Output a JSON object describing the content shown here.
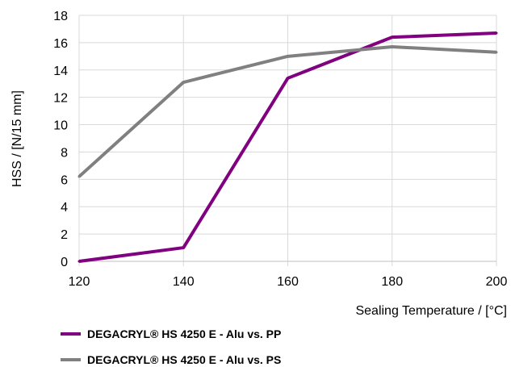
{
  "chart_data": {
    "type": "line",
    "title": "",
    "xlabel": "Sealing Temperature / [°C]",
    "ylabel": "HSS / [N/15 mm]",
    "x": [
      120,
      140,
      160,
      180,
      200
    ],
    "xticks": [
      "120",
      "140",
      "160",
      "180",
      "200"
    ],
    "yticks": [
      "0",
      "2",
      "4",
      "6",
      "8",
      "10",
      "12",
      "14",
      "16",
      "18"
    ],
    "xlim": [
      120,
      200
    ],
    "ylim": [
      0,
      18
    ],
    "grid": "horizontal",
    "legend": "bottom",
    "series": [
      {
        "name": "DEGACRYL® HS 4250 E - Alu vs. PP",
        "color": "#800080",
        "values": [
          0,
          1,
          13.4,
          16.4,
          16.7
        ]
      },
      {
        "name": "DEGACRYL® HS 4250 E - Alu vs. PS",
        "color": "#808080",
        "values": [
          6.2,
          13.1,
          15.0,
          15.7,
          15.3
        ]
      }
    ]
  }
}
